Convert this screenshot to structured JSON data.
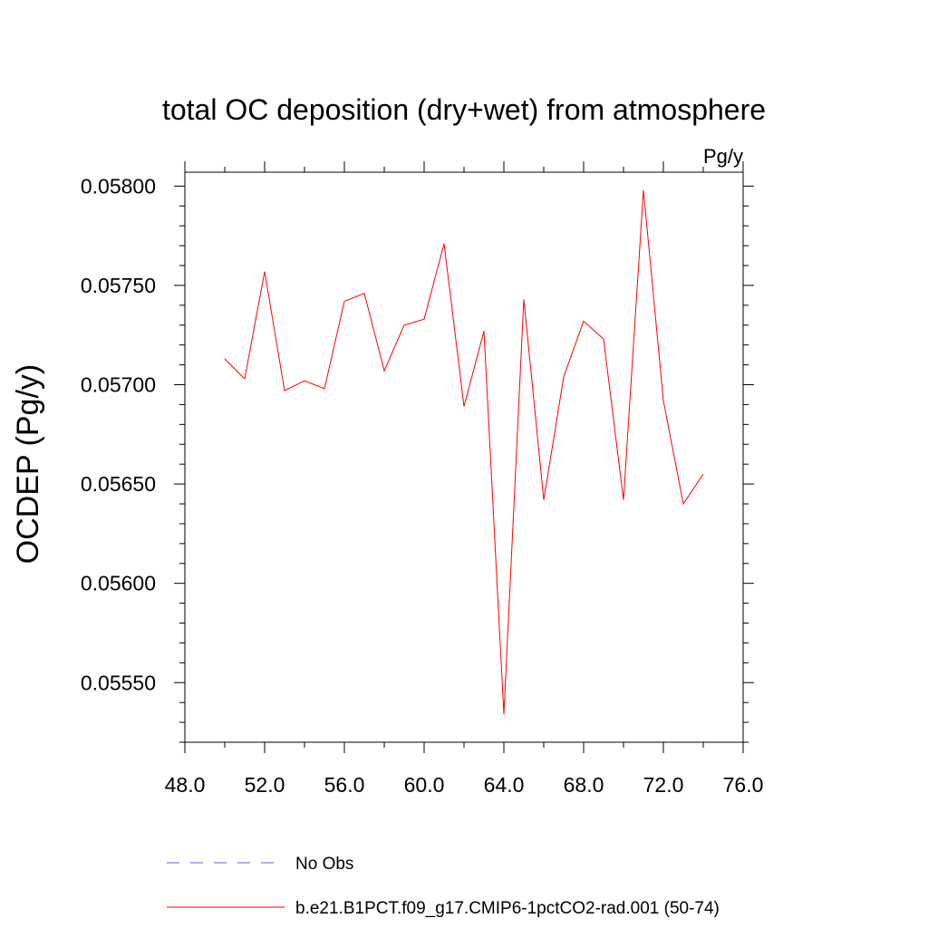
{
  "chart_data": {
    "type": "line",
    "title": "total OC deposition (dry+wet) from atmosphere",
    "units_label": "Pg/y",
    "xlabel": "",
    "ylabel": "OCDEP  (Pg/y)",
    "xlim": [
      48,
      76
    ],
    "ylim": [
      0.0552,
      0.05807
    ],
    "x_ticks": [
      "48.0",
      "52.0",
      "56.0",
      "60.0",
      "64.0",
      "68.0",
      "72.0",
      "76.0"
    ],
    "y_ticks": [
      "0.05550",
      "0.05600",
      "0.05650",
      "0.05700",
      "0.05750",
      "0.05800"
    ],
    "grid": false,
    "legend_position": "bottom",
    "series": [
      {
        "name": "No Obs",
        "color": "#6a5acd",
        "dashed": true,
        "x": [],
        "y": []
      },
      {
        "name": "b.e21.B1PCT.f09_g17.CMIP6-1pctCO2-rad.001 (50-74)",
        "color": "#ff0000",
        "dashed": false,
        "x": [
          50,
          51,
          52,
          53,
          54,
          55,
          56,
          57,
          58,
          59,
          60,
          61,
          62,
          63,
          64,
          65,
          66,
          67,
          68,
          69,
          70,
          71,
          72,
          73,
          74
        ],
        "y": [
          0.05713,
          0.05703,
          0.05757,
          0.05697,
          0.05702,
          0.05698,
          0.05742,
          0.05746,
          0.05707,
          0.0573,
          0.05733,
          0.05771,
          0.05689,
          0.05727,
          0.05534,
          0.05743,
          0.05642,
          0.05704,
          0.05732,
          0.05723,
          0.05642,
          0.05798,
          0.05692,
          0.0564,
          0.05655
        ]
      }
    ]
  }
}
